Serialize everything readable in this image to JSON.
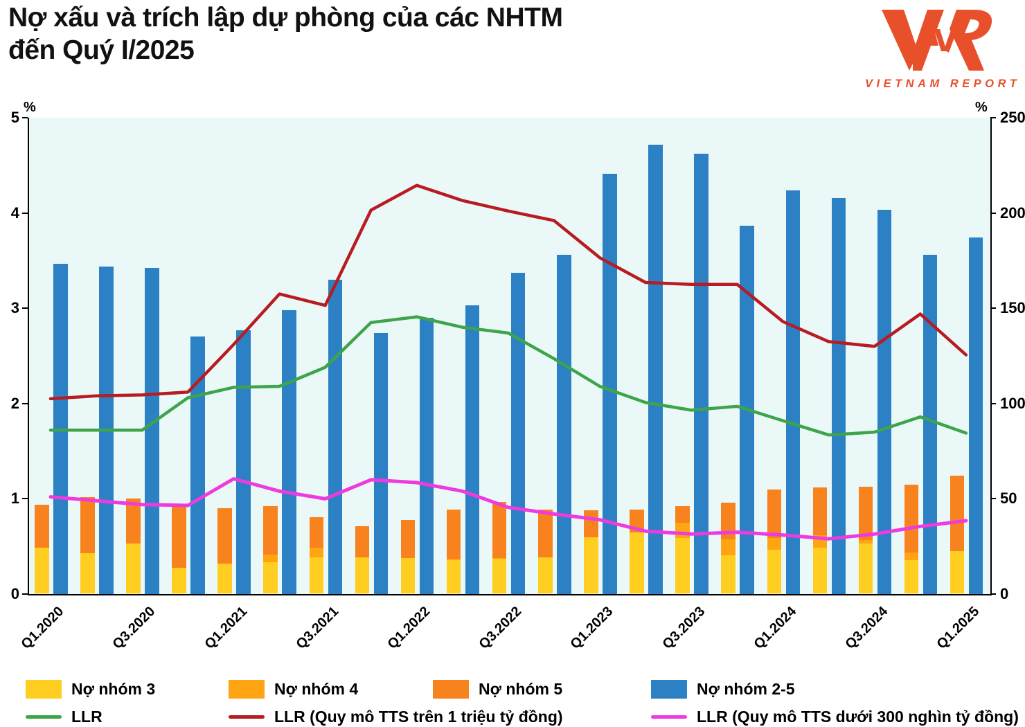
{
  "title": {
    "line1": "Nợ xấu và trích lập dự phòng của các NHTM",
    "line2": "đến Quý I/2025"
  },
  "logo": {
    "mark": "VNR",
    "subtext": "VIETNAM REPORT",
    "color": "#E8502B"
  },
  "chart_data": {
    "type": "bar",
    "subtype": "stacked-bar + grouped-bar + lines (dual axis)",
    "title": "Nợ xấu và trích lập dự phòng của các NHTM đến Quý I/2025",
    "left_axis": {
      "label": "%",
      "min": 0,
      "max": 5,
      "ticks": [
        0,
        1,
        2,
        3,
        4,
        5
      ]
    },
    "right_axis": {
      "label": "%",
      "min": 0,
      "max": 250,
      "ticks": [
        0,
        50,
        100,
        150,
        200,
        250
      ]
    },
    "grid": "off",
    "plot_background": "#EAF9F7",
    "categories": [
      "Q1.2020",
      "Q2.2020",
      "Q3.2020",
      "Q4.2020",
      "Q1.2021",
      "Q2.2021",
      "Q3.2021",
      "Q4.2021",
      "Q1.2022",
      "Q2.2022",
      "Q3.2022",
      "Q4.2022",
      "Q1.2023",
      "Q2.2023",
      "Q3.2023",
      "Q4.2023",
      "Q1.2024",
      "Q2.2024",
      "Q3.2024",
      "Q4.2024",
      "Q1.2025"
    ],
    "x_tick_shown_every": 2,
    "x_tick_labels": [
      "Q1.2020",
      "Q3.2020",
      "Q1.2021",
      "Q3.2021",
      "Q1.2022",
      "Q3.2022",
      "Q1.2023",
      "Q3.2023",
      "Q1.2024",
      "Q3.2024",
      "Q1.2025"
    ],
    "series": [
      {
        "name": "Nợ nhóm 3",
        "type": "bar-stack",
        "stack": "npl",
        "axis": "left",
        "color": "#FFCE20",
        "values": [
          0.48,
          0.42,
          0.52,
          0.27,
          0.31,
          0.33,
          0.38,
          0.38,
          0.37,
          0.35,
          0.36,
          0.38,
          0.59,
          0.64,
          0.58,
          0.4,
          0.46,
          0.48,
          0.52,
          0.35,
          0.44
        ]
      },
      {
        "name": "Nợ nhóm 4",
        "type": "bar-stack",
        "stack": "npl",
        "axis": "left",
        "color": "#FFA513",
        "values": [
          0.32,
          0.37,
          0.36,
          0.27,
          0.26,
          0.41,
          0.48,
          0.34,
          0.34,
          0.36,
          0.37,
          0.36,
          0.44,
          0.57,
          0.74,
          0.57,
          0.58,
          0.61,
          0.56,
          0.43,
          0.44
        ]
      },
      {
        "name": "Nợ nhóm 5",
        "type": "bar-stack",
        "stack": "npl",
        "axis": "left",
        "color": "#F8821E",
        "values": [
          0.94,
          1.02,
          1.0,
          0.93,
          0.9,
          0.92,
          0.81,
          0.71,
          0.78,
          0.89,
          0.97,
          0.89,
          0.88,
          0.89,
          0.92,
          0.96,
          1.1,
          1.12,
          1.13,
          1.15,
          1.24
        ]
      },
      {
        "name": "Nợ nhóm 2-5",
        "type": "bar",
        "axis": "left",
        "color": "#2C80C4",
        "values": [
          3.47,
          3.44,
          3.42,
          2.7,
          2.77,
          2.98,
          3.3,
          2.74,
          2.9,
          3.03,
          3.37,
          3.56,
          4.41,
          4.72,
          4.62,
          3.87,
          4.24,
          4.16,
          4.03,
          3.56,
          3.74
        ]
      },
      {
        "name": "LLR",
        "type": "line",
        "axis": "right",
        "color": "#3EA44B",
        "width": 4.5,
        "values": [
          86,
          86,
          86,
          103,
          108.5,
          109,
          119,
          142.5,
          145.5,
          140,
          137,
          123.5,
          109,
          100.5,
          96.5,
          98.5,
          91,
          83.5,
          85,
          93,
          84.5
        ]
      },
      {
        "name": "LLR (Quy mô TTS trên 1 triệu tỷ đồng)",
        "type": "line",
        "axis": "right",
        "color": "#B81B22",
        "width": 4.5,
        "values": [
          102.5,
          104,
          104.5,
          106,
          131,
          157.5,
          151.5,
          201.5,
          214.5,
          206.5,
          201,
          196,
          176.5,
          163.5,
          162.5,
          162.5,
          143,
          132.5,
          130,
          147,
          125.5
        ]
      },
      {
        "name": "LLR (Quy mô TTS dưới 300 nghìn tỷ đồng)",
        "type": "line",
        "axis": "right",
        "color": "#EE3BE0",
        "width": 5,
        "values": [
          51,
          49,
          47,
          46.5,
          60.5,
          54,
          50,
          60,
          58.5,
          54,
          45.5,
          42,
          39,
          33,
          31.5,
          32.5,
          31,
          29,
          31.5,
          35.5,
          38.5
        ]
      }
    ],
    "legend_position": "bottom"
  }
}
